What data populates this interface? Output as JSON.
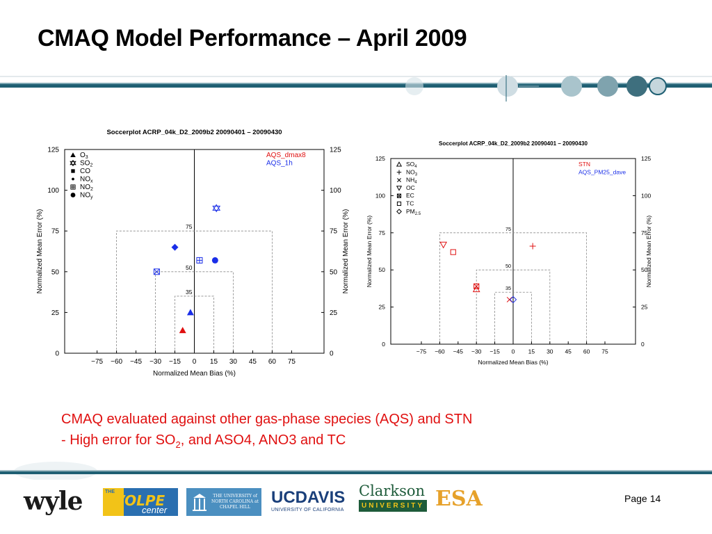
{
  "slide": {
    "title": "CMAQ Model Performance – April 2009",
    "caption_line1": "CMAQ evaluated against other gas-phase species (AQS) and STN",
    "caption_line2_pre": "- High error for SO",
    "caption_line2_sub": "2",
    "caption_line2_post": ", and ASO4, ANO3 and TC",
    "page_label": "Page",
    "page_number": "14",
    "logos": {
      "wyle": "wyle",
      "volpe": "VOLPE",
      "volpe_sub": "center",
      "volpe_the": "THE",
      "unc": "THE UNIVERSITY of NORTH CAROLINA at CHAPEL HILL",
      "ucdavis_uc": "UC",
      "ucdavis_davis": "DAVIS",
      "ucdavis_sub": "UNIVERSITY OF CALIFORNIA",
      "clarkson": "Clarkson",
      "clarkson_sub": "UNIVERSITY",
      "esa": "ESA"
    }
  },
  "colors": {
    "accent_red": "#e01010",
    "blue": "#1a2ee8",
    "teal": "#1f5f73"
  },
  "chart_data": [
    {
      "type": "scatter",
      "title": "Soccerplot ACRP_04k_D2_2009b2 20090401 – 20090430",
      "xlabel": "Normalized Mean Bias (%)",
      "ylabel": "Normalized Mean Error (%)",
      "xlim": [
        -100,
        100
      ],
      "ylim": [
        0,
        125
      ],
      "x_ticks": [
        "−75",
        "−60",
        "−45",
        "−30",
        "−15",
        "0",
        "15",
        "30",
        "45",
        "60",
        "75"
      ],
      "x_tick_values": [
        -75,
        -60,
        -45,
        -30,
        -15,
        0,
        15,
        30,
        45,
        60,
        75
      ],
      "y_ticks": [
        "0",
        "25",
        "50",
        "75",
        "100",
        "125"
      ],
      "y_tick_values": [
        0,
        25,
        50,
        75,
        100,
        125
      ],
      "goal_boxes": [
        {
          "label": "75",
          "bias": 60,
          "error": 75
        },
        {
          "label": "50",
          "bias": 30,
          "error": 50
        },
        {
          "label": "35",
          "bias": 15,
          "error": 35
        }
      ],
      "legend_species": [
        "O3",
        "SO2",
        "CO",
        "NOx",
        "NO2",
        "NOy"
      ],
      "legend_networks": [
        {
          "name": "AQS_dmax8",
          "color": "#e01010"
        },
        {
          "name": "AQS_1h",
          "color": "#1a2ee8"
        }
      ],
      "points": [
        {
          "species": "O3",
          "network": "AQS_dmax8",
          "x": -9,
          "y": 14,
          "marker": "triangle-filled",
          "color": "#e01010"
        },
        {
          "species": "O3",
          "network": "AQS_1h",
          "x": -3,
          "y": 25,
          "marker": "triangle-filled",
          "color": "#1a2ee8"
        },
        {
          "species": "SO2",
          "network": "AQS_1h",
          "x": 17,
          "y": 89,
          "marker": "star",
          "color": "#1a2ee8"
        },
        {
          "species": "NOx",
          "network": "AQS_1h",
          "x": -15,
          "y": 65,
          "marker": "diamond-filled",
          "color": "#1a2ee8"
        },
        {
          "species": "NO2",
          "network": "AQS_1h",
          "x": 4,
          "y": 57,
          "marker": "square-plus",
          "color": "#1a2ee8"
        },
        {
          "species": "NOy",
          "network": "AQS_1h",
          "x": 16,
          "y": 57,
          "marker": "circle-filled",
          "color": "#1a2ee8"
        },
        {
          "species": "CO",
          "network": "AQS_1h",
          "x": -29,
          "y": 50,
          "marker": "square-x",
          "color": "#1a2ee8"
        }
      ]
    },
    {
      "type": "scatter",
      "title": "Soccerplot ACRP_04k_D2_2009b2 20090401 – 20090430",
      "xlabel": "Normalized Mean Bias (%)",
      "ylabel": "Normalized Mean Error (%)",
      "xlim": [
        -100,
        100
      ],
      "ylim": [
        0,
        125
      ],
      "x_ticks": [
        "−75",
        "−60",
        "−45",
        "−30",
        "−15",
        "0",
        "15",
        "30",
        "45",
        "60",
        "75"
      ],
      "x_tick_values": [
        -75,
        -60,
        -45,
        -30,
        -15,
        0,
        15,
        30,
        45,
        60,
        75
      ],
      "y_ticks": [
        "0",
        "25",
        "50",
        "75",
        "100",
        "125"
      ],
      "y_tick_values": [
        0,
        25,
        50,
        75,
        100,
        125
      ],
      "goal_boxes": [
        {
          "label": "75",
          "bias": 60,
          "error": 75
        },
        {
          "label": "50",
          "bias": 30,
          "error": 50
        },
        {
          "label": "35",
          "bias": 15,
          "error": 35
        }
      ],
      "legend_species": [
        "SO4",
        "NO3",
        "NH4",
        "OC",
        "EC",
        "TC",
        "PM2.5"
      ],
      "legend_networks": [
        {
          "name": "STN",
          "color": "#e01010"
        },
        {
          "name": "AQS_PM25_dave",
          "color": "#1a2ee8"
        }
      ],
      "points": [
        {
          "species": "OC",
          "network": "STN",
          "x": -57,
          "y": 67,
          "marker": "triangle-down-open",
          "color": "#e01010"
        },
        {
          "species": "TC",
          "network": "STN",
          "x": -49,
          "y": 62,
          "marker": "square-open",
          "color": "#e01010"
        },
        {
          "species": "NO3",
          "network": "STN",
          "x": 16,
          "y": 66,
          "marker": "plus",
          "color": "#e01010"
        },
        {
          "species": "EC",
          "network": "STN",
          "x": -30,
          "y": 39,
          "marker": "square-x",
          "color": "#e01010"
        },
        {
          "species": "SO4",
          "network": "STN",
          "x": -30,
          "y": 37,
          "marker": "triangle-open",
          "color": "#e01010"
        },
        {
          "species": "NH4",
          "network": "STN",
          "x": -3,
          "y": 30,
          "marker": "x",
          "color": "#e01010"
        },
        {
          "species": "PM2.5",
          "network": "AQS_PM25_dave",
          "x": 0,
          "y": 30,
          "marker": "diamond-open",
          "color": "#1a2ee8"
        }
      ]
    }
  ]
}
